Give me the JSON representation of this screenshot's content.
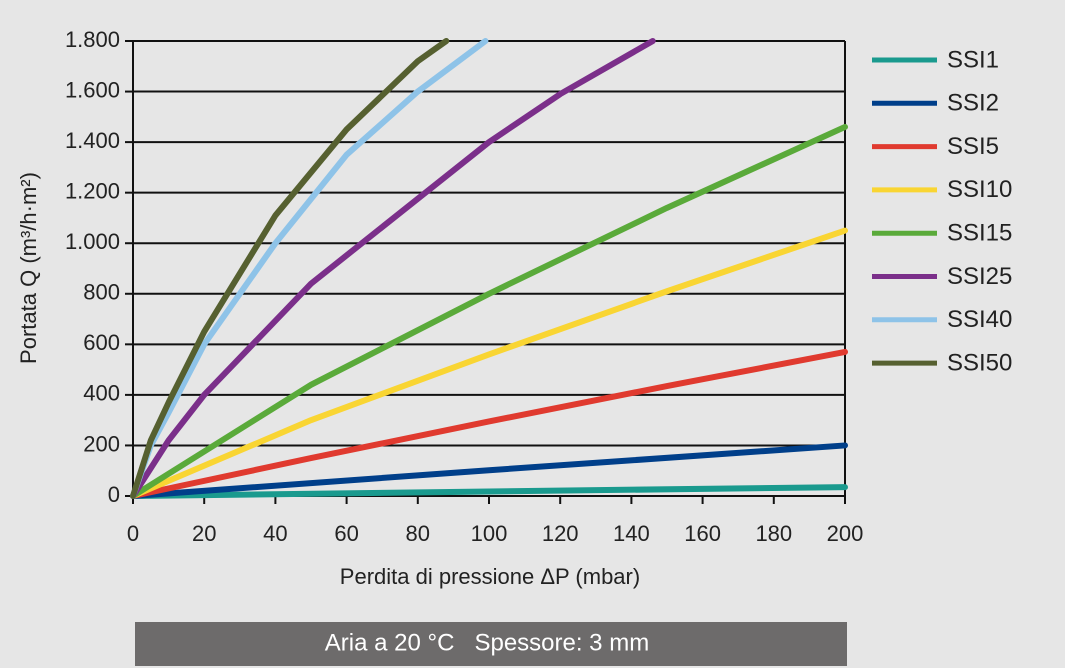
{
  "chart_data": {
    "type": "line",
    "x_label": "Perdita di pressione ΔP (mbar)",
    "y_label": "Portata Q (m³/h·m²)",
    "note": "Aria a 20 °C   Spessore: 3 mm",
    "xlim": [
      0,
      200
    ],
    "xticks": [
      0,
      20,
      40,
      60,
      80,
      100,
      120,
      140,
      160,
      180,
      200
    ],
    "ylim": [
      0,
      1800
    ],
    "yticks": [
      0,
      200,
      400,
      600,
      800,
      {
        "value": 1000,
        "label": "1.000"
      },
      {
        "value": 1200,
        "label": "1.200"
      },
      {
        "value": 1400,
        "label": "1.400"
      },
      {
        "value": 1600,
        "label": "1.600"
      },
      {
        "value": 1800,
        "label": "1.800"
      }
    ],
    "grid": true,
    "legend": "right",
    "series": [
      {
        "name": "SSI1",
        "color": "#1a9a8e",
        "x": [
          0,
          100,
          200
        ],
        "values": [
          0,
          18,
          35
        ]
      },
      {
        "name": "SSI2",
        "color": "#003f8a",
        "x": [
          0,
          100,
          200
        ],
        "values": [
          0,
          102,
          200
        ]
      },
      {
        "name": "SSI5",
        "color": "#e03a2f",
        "x": [
          0,
          50,
          100,
          150,
          200
        ],
        "values": [
          0,
          150,
          295,
          435,
          570
        ]
      },
      {
        "name": "SSI10",
        "color": "#f9d533",
        "x": [
          0,
          50,
          100,
          150,
          200
        ],
        "values": [
          0,
          300,
          560,
          810,
          1050
        ]
      },
      {
        "name": "SSI15",
        "color": "#5aaa3a",
        "x": [
          0,
          50,
          100,
          150,
          200
        ],
        "values": [
          0,
          440,
          800,
          1140,
          1460
        ]
      },
      {
        "name": "SSI25",
        "color": "#7b2f8a",
        "x": [
          0,
          10,
          20,
          50,
          100,
          120,
          146
        ],
        "values": [
          0,
          220,
          400,
          840,
          1400,
          1590,
          1800
        ]
      },
      {
        "name": "SSI40",
        "color": "#8ec3e8",
        "x": [
          0,
          5,
          10,
          20,
          40,
          60,
          80,
          99
        ],
        "values": [
          0,
          200,
          330,
          600,
          1000,
          1350,
          1600,
          1800
        ]
      },
      {
        "name": "SSI50",
        "color": "#566030",
        "x": [
          0,
          5,
          10,
          20,
          40,
          60,
          80,
          88
        ],
        "values": [
          0,
          220,
          370,
          650,
          1110,
          1450,
          1720,
          1800
        ]
      }
    ]
  }
}
